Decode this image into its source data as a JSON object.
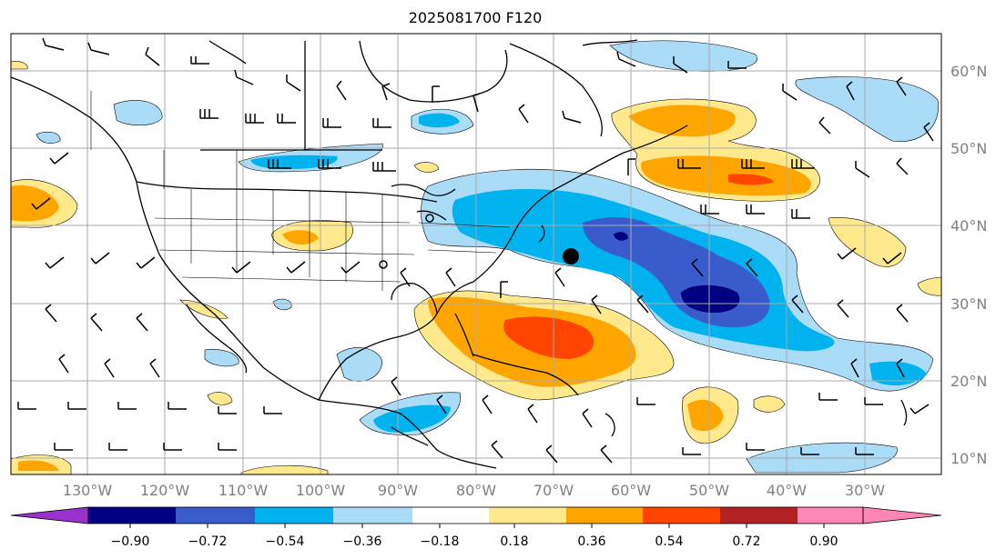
{
  "title": "2025081700 F120",
  "map": {
    "lon_labels": [
      "130°W",
      "120°W",
      "110°W",
      "100°W",
      "90°W",
      "80°W",
      "70°W",
      "60°W",
      "50°W",
      "40°W",
      "30°W"
    ],
    "lat_labels": [
      "60°N",
      "50°N",
      "40°N",
      "30°N",
      "20°N",
      "10°N"
    ],
    "label_color": "#808080",
    "marker_color": "#000000"
  },
  "colorbar": {
    "tick_labels": [
      "−0.90",
      "−0.72",
      "−0.54",
      "−0.36",
      "−0.18",
      "0.18",
      "0.36",
      "0.54",
      "0.72",
      "0.90"
    ],
    "colors": {
      "under": "#9932cc",
      "bins": [
        "#000080",
        "#3a5bcc",
        "#00b2ee",
        "#aadcf8",
        "#ffffff",
        "#ffe98c",
        "#ffa500",
        "#ff4500",
        "#b22222"
      ],
      "over": "#ff85b5"
    }
  }
}
